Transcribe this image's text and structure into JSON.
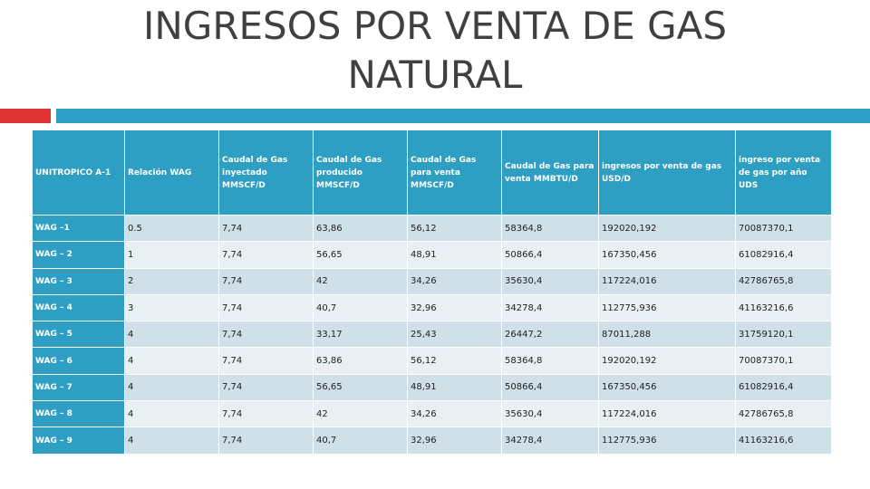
{
  "slide": {
    "title": "INGRESOS POR VENTA DE GAS NATURAL"
  },
  "colors": {
    "accent_blue": "#2e9fc2",
    "accent_red": "#dd3333",
    "row_odd": "#cfe0e8",
    "row_even": "#e8f0f4",
    "title_text": "#404040"
  },
  "table": {
    "headers": [
      "UNITROPICO A-1",
      "Relación WAG",
      "Caudal de Gas inyectado MMSCF/D",
      "Caudal de Gas producido MMSCF/D",
      "Caudal de Gas para venta MMSCF/D",
      "Caudal de Gas para venta MMBTU/D",
      "ingresos por venta de gas USD/D",
      "ingreso por venta de gas por año UDS"
    ],
    "rows": [
      [
        "WAG –1",
        "0.5",
        "7,74",
        "63,86",
        "56,12",
        "58364,8",
        "192020,192",
        "70087370,1"
      ],
      [
        "WAG – 2",
        "1",
        "7,74",
        "56,65",
        "48,91",
        "50866,4",
        "167350,456",
        "61082916,4"
      ],
      [
        "WAG – 3",
        "2",
        "7,74",
        "42",
        "34,26",
        "35630,4",
        "117224,016",
        "42786765,8"
      ],
      [
        "WAG – 4",
        "3",
        "7,74",
        "40,7",
        "32,96",
        "34278,4",
        "112775,936",
        "41163216,6"
      ],
      [
        "WAG – 5",
        "4",
        "7,74",
        "33,17",
        "25,43",
        "26447,2",
        "87011,288",
        "31759120,1"
      ],
      [
        "WAG – 6",
        "4",
        "7,74",
        "63,86",
        "56,12",
        "58364,8",
        "192020,192",
        "70087370,1"
      ],
      [
        "WAG – 7",
        "4",
        "7,74",
        "56,65",
        "48,91",
        "50866,4",
        "167350,456",
        "61082916,4"
      ],
      [
        "WAG – 8",
        "4",
        "7,74",
        "42",
        "34,26",
        "35630,4",
        "117224,016",
        "42786765,8"
      ],
      [
        "WAG – 9",
        "4",
        "7,74",
        "40,7",
        "32,96",
        "34278,4",
        "112775,936",
        "41163216,6"
      ]
    ]
  }
}
